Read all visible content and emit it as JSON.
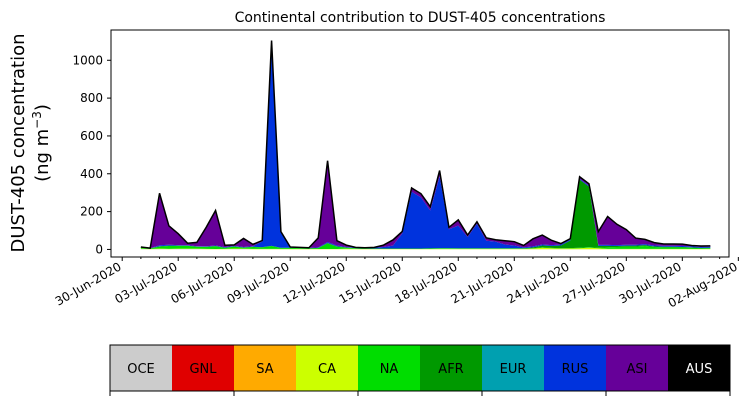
{
  "chart_data": {
    "type": "area",
    "title": "Continental contribution to DUST-405 concentrations",
    "ylabel_line1": "DUST-405 concentration",
    "ylabel_line2": "(ng m",
    "ylabel_sup": "−3",
    "ylabel_close": ")",
    "yticks": [
      0,
      200,
      400,
      600,
      800,
      1000
    ],
    "ylim": [
      -40,
      1160
    ],
    "xlim_days": [
      -0.6,
      32.5
    ],
    "x_ticks": [
      {
        "day": 0,
        "label": "30-Jun-2020"
      },
      {
        "day": 3,
        "label": "03-Jul-2020"
      },
      {
        "day": 6,
        "label": "06-Jul-2020"
      },
      {
        "day": 9,
        "label": "09-Jul-2020"
      },
      {
        "day": 12,
        "label": "12-Jul-2020"
      },
      {
        "day": 15,
        "label": "15-Jul-2020"
      },
      {
        "day": 18,
        "label": "18-Jul-2020"
      },
      {
        "day": 21,
        "label": "21-Jul-2020"
      },
      {
        "day": 24,
        "label": "24-Jul-2020"
      },
      {
        "day": 27,
        "label": "27-Jul-2020"
      },
      {
        "day": 30,
        "label": "30-Jul-2020"
      },
      {
        "day": 33,
        "label": "02-Aug-2020"
      }
    ],
    "x_days": [
      1.0,
      1.5,
      2.0,
      2.5,
      3.0,
      3.5,
      4.0,
      4.5,
      5.0,
      5.5,
      6.0,
      6.5,
      7.0,
      7.5,
      8.0,
      8.5,
      9.0,
      9.5,
      10.0,
      10.5,
      11.0,
      11.5,
      12.0,
      12.5,
      13.0,
      13.5,
      14.0,
      14.5,
      15.0,
      15.5,
      16.0,
      16.5,
      17.0,
      17.5,
      18.0,
      18.5,
      19.0,
      19.5,
      20.0,
      20.5,
      21.0,
      21.5,
      22.0,
      22.5,
      23.0,
      23.5,
      24.0,
      24.5,
      25.0,
      25.5,
      26.0,
      26.5,
      27.0,
      27.5,
      28.0,
      28.5,
      29.0,
      29.5,
      30.0,
      30.5,
      31.0,
      31.5
    ],
    "legend_position": "bottom",
    "series": [
      {
        "name": "OCE",
        "color": "#cccccc",
        "values": [
          2,
          1,
          2,
          1,
          2,
          2,
          2,
          1,
          1,
          1,
          2,
          2,
          1,
          1,
          1,
          1,
          1,
          1,
          1,
          1,
          1,
          1,
          1,
          1,
          1,
          1,
          1,
          1,
          1,
          1,
          1,
          1,
          1,
          1,
          1,
          1,
          1,
          1,
          1,
          1,
          1,
          1,
          1,
          1,
          1,
          1,
          1,
          1,
          1,
          1,
          1,
          1,
          1,
          1,
          1,
          1,
          1,
          1,
          1,
          1,
          1,
          1
        ]
      },
      {
        "name": "GNL",
        "color": "#e00000",
        "values": [
          0,
          0,
          0,
          0,
          0,
          0,
          0,
          0,
          0,
          0,
          0,
          0,
          0,
          0,
          0,
          0,
          0,
          0,
          0,
          0,
          0,
          0,
          0,
          0,
          0,
          0,
          0,
          0,
          0,
          0,
          0,
          0,
          0,
          0,
          0,
          0,
          0,
          0,
          0,
          0,
          0,
          0,
          0,
          0,
          0,
          0,
          0,
          0,
          0,
          0,
          0,
          0,
          0,
          0,
          0,
          0,
          0,
          0,
          0,
          0,
          0,
          0
        ]
      },
      {
        "name": "SA",
        "color": "#ffaa00",
        "values": [
          0,
          0,
          0,
          0,
          0,
          0,
          0,
          0,
          0,
          0,
          0,
          0,
          0,
          0,
          0,
          0,
          0,
          0,
          0,
          0,
          0,
          0,
          0,
          0,
          0,
          0,
          0,
          0,
          0,
          0,
          0,
          0,
          0,
          0,
          0,
          0,
          0,
          0,
          0,
          0,
          0,
          0,
          0,
          0,
          0,
          0,
          0,
          0,
          0,
          0,
          0,
          0,
          0,
          0,
          0,
          0,
          0,
          0,
          0,
          0,
          0,
          0
        ]
      },
      {
        "name": "CA",
        "color": "#ccff00",
        "values": [
          2,
          1,
          3,
          2,
          2,
          2,
          2,
          2,
          1,
          2,
          3,
          2,
          2,
          2,
          2,
          2,
          2,
          2,
          1,
          1,
          1,
          1,
          3,
          2,
          1,
          1,
          1,
          1,
          1,
          1,
          1,
          1,
          2,
          2,
          2,
          2,
          2,
          2,
          2,
          2,
          2,
          2,
          3,
          8,
          5,
          3,
          4,
          5,
          8,
          5,
          2,
          2,
          2,
          2,
          2,
          2,
          2,
          2,
          2,
          2,
          1,
          2
        ]
      },
      {
        "name": "NA",
        "color": "#00dd00",
        "values": [
          6,
          3,
          10,
          15,
          15,
          15,
          10,
          10,
          15,
          5,
          10,
          5,
          10,
          8,
          15,
          5,
          5,
          4,
          3,
          5,
          30,
          12,
          5,
          3,
          2,
          2,
          2,
          2,
          2,
          2,
          2,
          3,
          3,
          3,
          2,
          2,
          2,
          2,
          2,
          2,
          2,
          2,
          2,
          2,
          2,
          2,
          2,
          3,
          3,
          3,
          8,
          10,
          12,
          12,
          15,
          10,
          8,
          8,
          8,
          6,
          4,
          4
        ]
      },
      {
        "name": "AFR",
        "color": "#009900",
        "values": [
          1,
          1,
          2,
          2,
          1,
          1,
          1,
          1,
          1,
          1,
          1,
          1,
          1,
          1,
          1,
          1,
          1,
          1,
          1,
          1,
          2,
          2,
          1,
          1,
          1,
          1,
          1,
          1,
          1,
          1,
          1,
          1,
          1,
          1,
          1,
          1,
          1,
          1,
          1,
          1,
          1,
          1,
          5,
          10,
          10,
          15,
          40,
          360,
          320,
          10,
          8,
          5,
          5,
          5,
          5,
          3,
          3,
          3,
          2,
          2,
          2,
          2
        ]
      },
      {
        "name": "EUR",
        "color": "#00a0b0",
        "values": [
          0,
          0,
          0,
          0,
          0,
          0,
          0,
          0,
          0,
          0,
          0,
          0,
          0,
          0,
          0,
          0,
          0,
          0,
          0,
          0,
          0,
          0,
          0,
          0,
          0,
          0,
          0,
          0,
          0,
          0,
          0,
          0,
          0,
          0,
          0,
          0,
          0,
          0,
          0,
          0,
          0,
          0,
          0,
          0,
          0,
          0,
          0,
          0,
          0,
          0,
          0,
          0,
          0,
          0,
          0,
          0,
          0,
          0,
          0,
          0,
          0,
          0
        ]
      },
      {
        "name": "RUS",
        "color": "#0033dd",
        "values": [
          0,
          0,
          5,
          5,
          3,
          3,
          2,
          3,
          3,
          3,
          3,
          3,
          3,
          30,
          1080,
          80,
          3,
          2,
          2,
          3,
          5,
          5,
          3,
          3,
          3,
          5,
          8,
          15,
          80,
          300,
          270,
          200,
          380,
          100,
          120,
          60,
          130,
          40,
          35,
          20,
          15,
          5,
          5,
          5,
          5,
          5,
          5,
          5,
          5,
          5,
          5,
          5,
          5,
          5,
          5,
          5,
          5,
          5,
          5,
          5,
          5,
          5
        ]
      },
      {
        "name": "ASI",
        "color": "#660099",
        "values": [
          2,
          1,
          275,
          100,
          60,
          10,
          20,
          100,
          185,
          10,
          5,
          45,
          10,
          5,
          5,
          5,
          1,
          1,
          1,
          50,
          430,
          25,
          10,
          1,
          1,
          1,
          10,
          30,
          10,
          20,
          20,
          20,
          30,
          10,
          30,
          10,
          10,
          15,
          10,
          20,
          20,
          10,
          40,
          50,
          25,
          5,
          5,
          10,
          10,
          70,
          150,
          110,
          80,
          35,
          25,
          15,
          10,
          10,
          10,
          5,
          5,
          5
        ]
      },
      {
        "name": "AUS",
        "color": "#000000",
        "values": [
          0,
          0,
          0,
          0,
          0,
          0,
          0,
          0,
          0,
          0,
          0,
          0,
          0,
          0,
          0,
          0,
          0,
          0,
          0,
          0,
          0,
          0,
          0,
          0,
          0,
          0,
          0,
          0,
          0,
          0,
          0,
          0,
          0,
          0,
          0,
          0,
          0,
          0,
          0,
          0,
          0,
          0,
          0,
          0,
          0,
          0,
          0,
          0,
          0,
          0,
          0,
          0,
          0,
          0,
          0,
          0,
          0,
          0,
          0,
          0,
          0,
          0
        ]
      }
    ],
    "legend": [
      {
        "label": "OCE",
        "color": "#cccccc",
        "text_color": "#000000"
      },
      {
        "label": "GNL",
        "color": "#e00000",
        "text_color": "#000000"
      },
      {
        "label": "SA",
        "color": "#ffaa00",
        "text_color": "#000000"
      },
      {
        "label": "CA",
        "color": "#ccff00",
        "text_color": "#000000"
      },
      {
        "label": "NA",
        "color": "#00dd00",
        "text_color": "#000000"
      },
      {
        "label": "AFR",
        "color": "#009900",
        "text_color": "#000000"
      },
      {
        "label": "EUR",
        "color": "#00a0b0",
        "text_color": "#000000"
      },
      {
        "label": "RUS",
        "color": "#0033dd",
        "text_color": "#000000"
      },
      {
        "label": "ASI",
        "color": "#660099",
        "text_color": "#000000"
      },
      {
        "label": "AUS",
        "color": "#000000",
        "text_color": "#ffffff"
      }
    ]
  }
}
